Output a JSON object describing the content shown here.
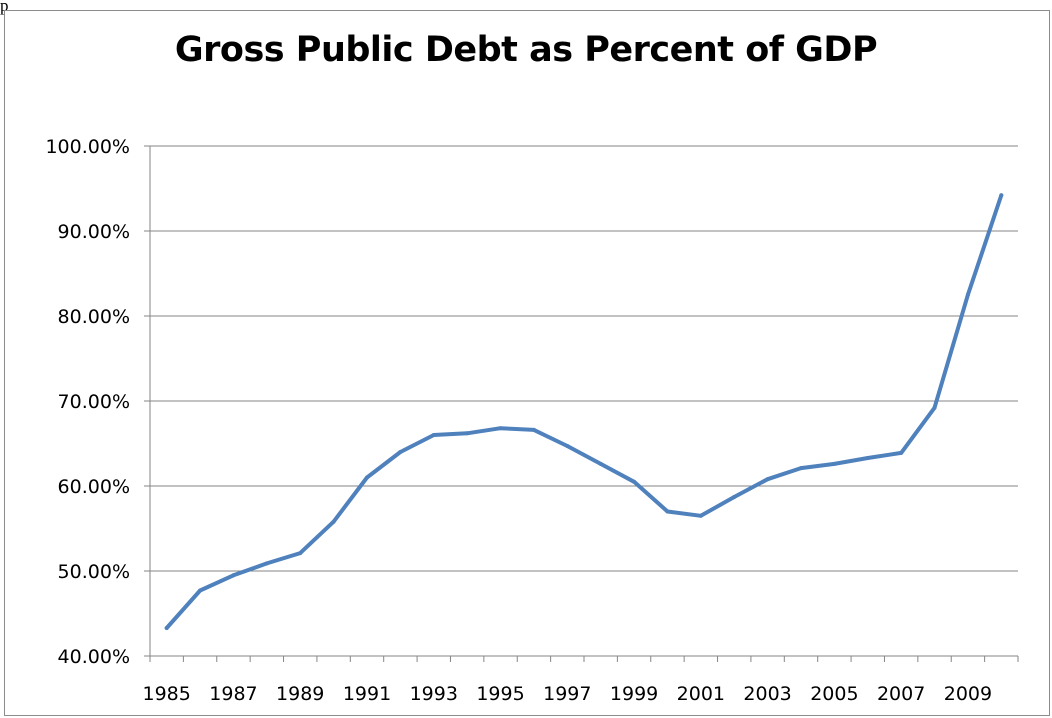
{
  "header": {
    "fragment_label": "p"
  },
  "chart_data": {
    "type": "line",
    "title": "Gross Public Debt as Percent of GDP",
    "xlabel": "",
    "ylabel": "",
    "x_tick_labels": [
      "1985",
      "1987",
      "1989",
      "1991",
      "1993",
      "1995",
      "1997",
      "1999",
      "2001",
      "2003",
      "2005",
      "2007",
      "2009"
    ],
    "y_tick_labels": [
      "40.00%",
      "50.00%",
      "60.00%",
      "70.00%",
      "80.00%",
      "90.00%",
      "100.00%"
    ],
    "ylim": [
      40,
      100
    ],
    "xlim": [
      1985,
      2010
    ],
    "grid": "horizontal",
    "legend": "none",
    "line_color": "#4f81bd",
    "series": [
      {
        "x": [
          1985,
          1986,
          1987,
          1988,
          1989,
          1990,
          1991,
          1992,
          1993,
          1994,
          1995,
          1996,
          1997,
          1998,
          1999,
          2000,
          2001,
          2002,
          2003,
          2004,
          2005,
          2006,
          2007,
          2008,
          2009,
          2010
        ],
        "values": [
          43.3,
          47.7,
          49.5,
          50.9,
          52.1,
          55.8,
          61.0,
          64.0,
          66.0,
          66.2,
          66.8,
          66.6,
          64.7,
          62.6,
          60.5,
          57.0,
          56.5,
          58.7,
          60.8,
          62.1,
          62.6,
          63.3,
          63.9,
          69.2,
          82.5,
          94.2
        ]
      }
    ]
  }
}
